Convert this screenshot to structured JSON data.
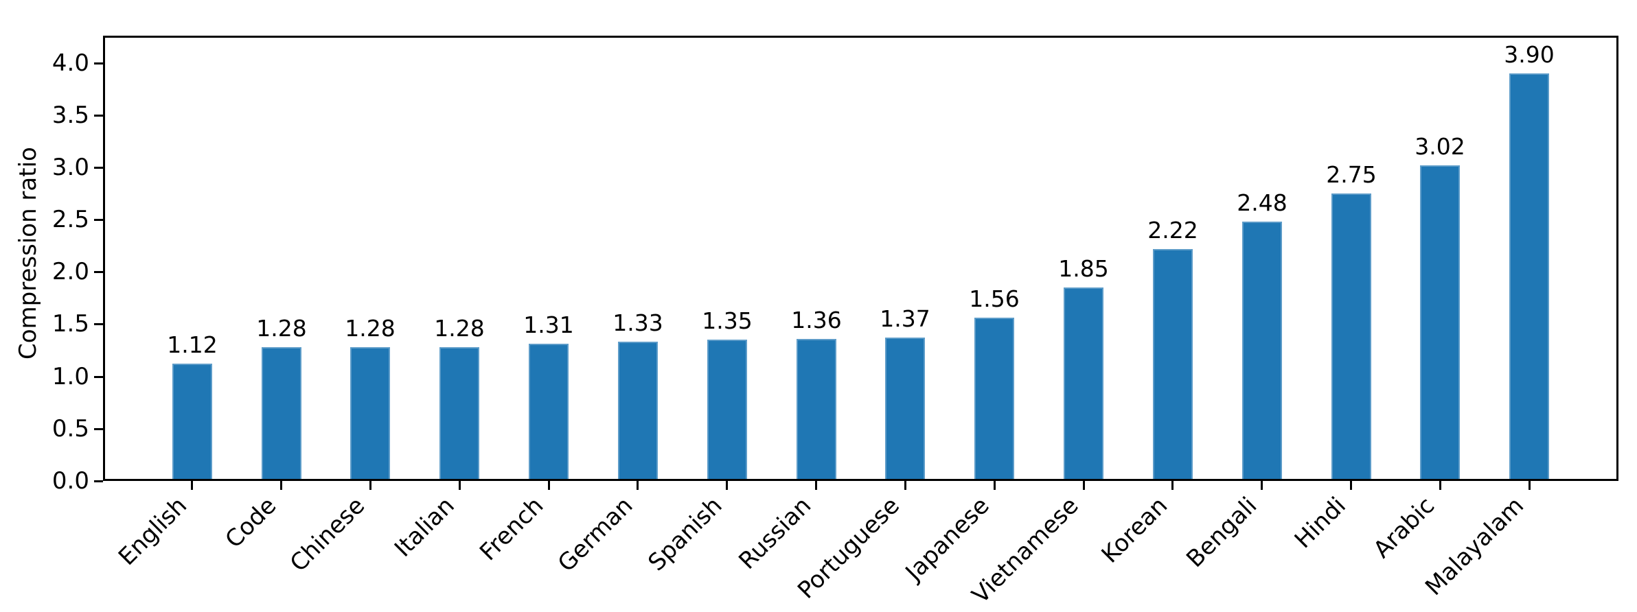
{
  "chart_data": {
    "type": "bar",
    "title": "",
    "xlabel": "",
    "ylabel": "Compression ratio",
    "categories": [
      "English",
      "Code",
      "Chinese",
      "Italian",
      "French",
      "German",
      "Spanish",
      "Russian",
      "Portuguese",
      "Japanese",
      "Vietnamese",
      "Korean",
      "Bengali",
      "Hindi",
      "Arabic",
      "Malayalam"
    ],
    "values": [
      1.12,
      1.28,
      1.28,
      1.28,
      1.31,
      1.33,
      1.35,
      1.36,
      1.37,
      1.56,
      1.85,
      2.22,
      2.48,
      2.75,
      3.02,
      3.9
    ],
    "bar_labels": [
      "1.12",
      "1.28",
      "1.28",
      "1.28",
      "1.31",
      "1.33",
      "1.35",
      "1.36",
      "1.37",
      "1.56",
      "1.85",
      "2.22",
      "2.48",
      "2.75",
      "3.02",
      "3.90"
    ],
    "ytick_labels": [
      "0.0",
      "0.5",
      "1.0",
      "1.5",
      "2.0",
      "2.5",
      "3.0",
      "3.5",
      "4.0"
    ],
    "ytick_values": [
      0.0,
      0.5,
      1.0,
      1.5,
      2.0,
      2.5,
      3.0,
      3.5,
      4.0
    ],
    "ylim": [
      0,
      4.26
    ],
    "xtick_rotation": 45,
    "grid": false,
    "legend": null,
    "colors": {
      "bar": "#1f77b4",
      "axis": "#000000",
      "text": "#000000",
      "background": "#ffffff"
    }
  }
}
